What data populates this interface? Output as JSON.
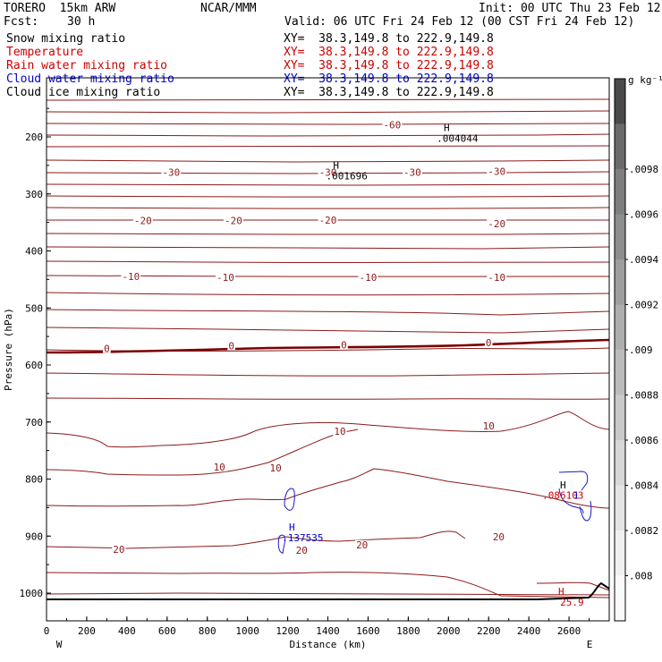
{
  "header": {
    "model": "TORERO  15km ARW",
    "org": "NCAR/MMM",
    "init": "Init: 00 UTC Thu 23 Feb 12",
    "fcst_label": "Fcst:",
    "fcst_value": "30 h",
    "valid": "Valid: 06 UTC Fri 24 Feb 12 (00 CST Fri 24 Feb 12)"
  },
  "fields": [
    {
      "name": "Snow mixing ratio",
      "xy": "XY=  38.3,149.8 to 222.9,149.8",
      "color": "#000000"
    },
    {
      "name": "Temperature",
      "xy": "XY=  38.3,149.8 to 222.9,149.8",
      "color": "#cc0000"
    },
    {
      "name": "Rain water mixing ratio",
      "xy": "XY=  38.3,149.8 to 222.9,149.8",
      "color": "#cc0000"
    },
    {
      "name": "Cloud water mixing ratio",
      "xy": "XY=  38.3,149.8 to 222.9,149.8",
      "color": "#0000cc"
    },
    {
      "name": "Cloud ice mixing ratio",
      "xy": "XY=  38.3,149.8 to 222.9,149.8",
      "color": "#000000"
    }
  ],
  "colors": {
    "temperature": "#8b1a1a",
    "zero_isotherm": "#7a0000",
    "cloud_water": "#1a1acc",
    "text_red": "#cc0000",
    "text_blue": "#0000cc"
  },
  "chart_data": {
    "type": "contour",
    "xlabel": "Distance (km)",
    "ylabel": "Pressure (hPa)",
    "xlim": [
      0,
      2800
    ],
    "ylim": [
      1050,
      100
    ],
    "xticks": [
      0,
      200,
      400,
      600,
      800,
      1000,
      1200,
      1400,
      1600,
      1800,
      2000,
      2200,
      2400,
      2600
    ],
    "yticks": [
      200,
      300,
      400,
      500,
      600,
      700,
      800,
      900,
      1000
    ],
    "x_end_left": "W",
    "x_end_right": "E",
    "colorbar": {
      "unit": "g kg⁻¹",
      "ticks": [
        ".008",
        ".0082",
        ".0084",
        ".0086",
        ".0088",
        ".009",
        ".0092",
        ".0094",
        ".0096",
        ".0098"
      ],
      "colors": [
        "#fafafa",
        "#f0f0f0",
        "#e4e4e4",
        "#d8d8d8",
        "#cacaca",
        "#bcbcbc",
        "#aeaeae",
        "#9e9e9e",
        "#8e8e8e",
        "#7e7e7e",
        "#6a6a6a",
        "#4a4a4a"
      ]
    },
    "temperature_labels": [
      {
        "text": "-60",
        "x": 1720,
        "p": 179
      },
      {
        "text": "-30",
        "x": 620,
        "p": 262
      },
      {
        "text": "-30",
        "x": 1400,
        "p": 262
      },
      {
        "text": "-30",
        "x": 1820,
        "p": 262
      },
      {
        "text": "-30",
        "x": 2240,
        "p": 260
      },
      {
        "text": "-20",
        "x": 480,
        "p": 347
      },
      {
        "text": "-20",
        "x": 930,
        "p": 347
      },
      {
        "text": "-20",
        "x": 1400,
        "p": 346
      },
      {
        "text": "-20",
        "x": 2240,
        "p": 352
      },
      {
        "text": "-10",
        "x": 420,
        "p": 445
      },
      {
        "text": "-10",
        "x": 890,
        "p": 446
      },
      {
        "text": "-10",
        "x": 1600,
        "p": 446
      },
      {
        "text": "-10",
        "x": 2240,
        "p": 446
      },
      {
        "text": "0",
        "x": 300,
        "p": 571
      },
      {
        "text": "0",
        "x": 920,
        "p": 566
      },
      {
        "text": "0",
        "x": 1480,
        "p": 565
      },
      {
        "text": "0",
        "x": 2200,
        "p": 561
      },
      {
        "text": "10",
        "x": 1460,
        "p": 716
      },
      {
        "text": "10",
        "x": 2200,
        "p": 707
      },
      {
        "text": "10",
        "x": 860,
        "p": 779
      },
      {
        "text": "10",
        "x": 1140,
        "p": 780
      },
      {
        "text": "20",
        "x": 360,
        "p": 923
      },
      {
        "text": "20",
        "x": 1270,
        "p": 925
      },
      {
        "text": "20",
        "x": 1570,
        "p": 915
      },
      {
        "text": "20",
        "x": 2250,
        "p": 901
      }
    ],
    "maxima": [
      {
        "text": "H",
        "sub": ".004044",
        "x": 2000,
        "p": 190,
        "color": "#000000"
      },
      {
        "text": "H",
        "sub": ".001696",
        "x": 1450,
        "p": 256,
        "color": "#000000"
      },
      {
        "text": "H",
        "sub": ".137535",
        "x": 1230,
        "p": 890,
        "color": "#0000cc"
      },
      {
        "text": "H",
        "sub": "25.9",
        "x": 2570,
        "p": 1003,
        "color": "#cc0000"
      }
    ],
    "overlap_labels": [
      {
        "text": "H",
        "x": 2570,
        "p": 810,
        "color": "#000000"
      },
      {
        "text": ".086103",
        "x": 2570,
        "p": 828,
        "color": "#cc0000"
      },
      {
        "text": "1",
        "x": 2635,
        "p": 828,
        "color": "#0000cc"
      }
    ]
  }
}
